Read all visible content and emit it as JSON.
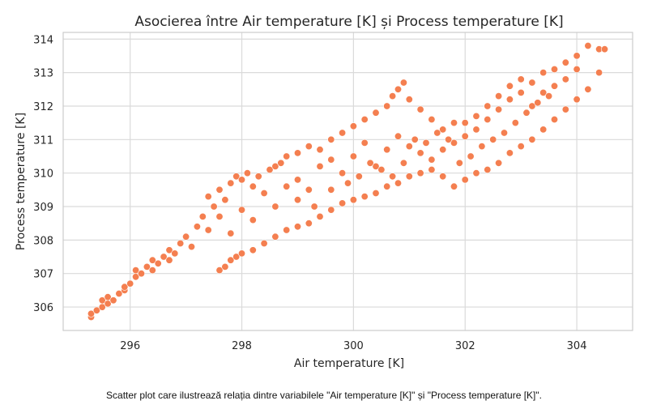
{
  "caption": "Scatter plot care ilustrează relația dintre variabilele \"Air temperature [K]\" și \"Process temperature [K]\".",
  "colors": {
    "point": "#f47f50",
    "point_edge": "#ffffff",
    "grid": "#dadada",
    "spine": "#cccccc",
    "background": "#ffffff"
  },
  "chart_data": {
    "type": "scatter",
    "title": "Asocierea între Air temperature [K] și Process temperature [K]",
    "xlabel": "Air temperature [K]",
    "ylabel": "Process temperature [K]",
    "xlim": [
      294.8,
      305.0
    ],
    "ylim": [
      305.3,
      314.2
    ],
    "xticks": [
      296,
      298,
      300,
      302,
      304
    ],
    "yticks": [
      306,
      307,
      308,
      309,
      310,
      311,
      312,
      313,
      314
    ],
    "grid": true,
    "legend": "none",
    "points": [
      [
        295.3,
        305.7
      ],
      [
        295.3,
        305.8
      ],
      [
        295.4,
        305.9
      ],
      [
        295.5,
        306.0
      ],
      [
        295.5,
        306.2
      ],
      [
        295.6,
        306.1
      ],
      [
        295.6,
        306.3
      ],
      [
        295.7,
        306.2
      ],
      [
        295.8,
        306.4
      ],
      [
        295.9,
        306.5
      ],
      [
        295.9,
        306.6
      ],
      [
        296.0,
        306.7
      ],
      [
        296.1,
        306.9
      ],
      [
        296.1,
        307.1
      ],
      [
        296.2,
        307.0
      ],
      [
        296.3,
        307.2
      ],
      [
        296.4,
        307.1
      ],
      [
        296.4,
        307.4
      ],
      [
        296.5,
        307.3
      ],
      [
        296.6,
        307.5
      ],
      [
        296.7,
        307.4
      ],
      [
        296.7,
        307.7
      ],
      [
        296.8,
        307.6
      ],
      [
        296.9,
        307.9
      ],
      [
        297.0,
        308.1
      ],
      [
        297.1,
        307.8
      ],
      [
        297.2,
        308.4
      ],
      [
        297.3,
        308.7
      ],
      [
        297.4,
        308.3
      ],
      [
        297.5,
        309.0
      ],
      [
        297.6,
        309.5
      ],
      [
        297.7,
        309.2
      ],
      [
        297.8,
        309.7
      ],
      [
        297.9,
        309.9
      ],
      [
        298.0,
        309.8
      ],
      [
        298.1,
        310.0
      ],
      [
        298.2,
        309.6
      ],
      [
        298.3,
        309.9
      ],
      [
        298.5,
        310.1
      ],
      [
        298.6,
        310.2
      ],
      [
        298.7,
        310.3
      ],
      [
        298.8,
        310.5
      ],
      [
        299.0,
        310.6
      ],
      [
        299.2,
        310.8
      ],
      [
        299.4,
        310.7
      ],
      [
        299.6,
        311.0
      ],
      [
        299.8,
        311.2
      ],
      [
        300.0,
        311.4
      ],
      [
        300.2,
        311.6
      ],
      [
        300.4,
        311.8
      ],
      [
        300.6,
        312.0
      ],
      [
        300.7,
        312.3
      ],
      [
        300.8,
        312.5
      ],
      [
        300.9,
        312.7
      ],
      [
        301.0,
        312.2
      ],
      [
        301.2,
        311.9
      ],
      [
        301.4,
        311.6
      ],
      [
        301.6,
        311.3
      ],
      [
        301.8,
        311.5
      ],
      [
        302.0,
        311.5
      ],
      [
        302.2,
        311.7
      ],
      [
        302.4,
        312.0
      ],
      [
        302.6,
        312.3
      ],
      [
        302.8,
        312.6
      ],
      [
        303.0,
        312.8
      ],
      [
        303.2,
        312.7
      ],
      [
        303.4,
        313.0
      ],
      [
        303.6,
        313.1
      ],
      [
        303.8,
        313.3
      ],
      [
        304.0,
        313.5
      ],
      [
        304.2,
        313.8
      ],
      [
        304.4,
        313.7
      ],
      [
        304.5,
        313.7
      ],
      [
        297.6,
        307.1
      ],
      [
        297.7,
        307.2
      ],
      [
        297.8,
        307.4
      ],
      [
        297.9,
        307.5
      ],
      [
        298.0,
        307.6
      ],
      [
        298.2,
        307.7
      ],
      [
        298.4,
        307.9
      ],
      [
        298.6,
        308.1
      ],
      [
        298.8,
        308.3
      ],
      [
        299.0,
        308.4
      ],
      [
        299.2,
        308.5
      ],
      [
        299.4,
        308.7
      ],
      [
        299.6,
        308.9
      ],
      [
        299.8,
        309.1
      ],
      [
        300.0,
        309.2
      ],
      [
        300.2,
        309.3
      ],
      [
        300.4,
        309.4
      ],
      [
        300.6,
        309.6
      ],
      [
        300.8,
        309.7
      ],
      [
        301.0,
        309.9
      ],
      [
        301.2,
        310.0
      ],
      [
        301.4,
        310.1
      ],
      [
        301.6,
        309.9
      ],
      [
        301.8,
        309.6
      ],
      [
        302.0,
        309.8
      ],
      [
        302.2,
        310.0
      ],
      [
        302.4,
        310.1
      ],
      [
        302.6,
        310.3
      ],
      [
        302.8,
        310.6
      ],
      [
        303.0,
        310.8
      ],
      [
        303.2,
        311.0
      ],
      [
        303.4,
        311.3
      ],
      [
        303.6,
        311.6
      ],
      [
        303.8,
        311.9
      ],
      [
        304.0,
        312.2
      ],
      [
        304.2,
        312.5
      ],
      [
        304.4,
        313.0
      ],
      [
        297.4,
        309.3
      ],
      [
        297.6,
        308.7
      ],
      [
        297.8,
        308.2
      ],
      [
        298.0,
        308.9
      ],
      [
        298.2,
        308.6
      ],
      [
        298.4,
        309.4
      ],
      [
        298.6,
        309.0
      ],
      [
        298.8,
        309.6
      ],
      [
        299.0,
        309.8
      ],
      [
        299.2,
        309.5
      ],
      [
        299.4,
        310.2
      ],
      [
        299.6,
        310.4
      ],
      [
        299.8,
        310.0
      ],
      [
        300.0,
        310.5
      ],
      [
        300.2,
        310.9
      ],
      [
        300.4,
        310.2
      ],
      [
        300.6,
        310.7
      ],
      [
        300.8,
        311.1
      ],
      [
        301.0,
        310.8
      ],
      [
        301.2,
        310.6
      ],
      [
        301.4,
        310.4
      ],
      [
        301.6,
        310.7
      ],
      [
        301.8,
        310.9
      ],
      [
        302.0,
        311.1
      ],
      [
        302.2,
        311.3
      ],
      [
        302.4,
        311.6
      ],
      [
        302.6,
        311.9
      ],
      [
        302.8,
        312.2
      ],
      [
        303.0,
        312.4
      ],
      [
        303.2,
        312.0
      ],
      [
        303.4,
        312.4
      ],
      [
        303.6,
        312.6
      ],
      [
        303.8,
        312.8
      ],
      [
        304.0,
        313.1
      ],
      [
        299.0,
        309.2
      ],
      [
        299.3,
        309.0
      ],
      [
        299.6,
        309.5
      ],
      [
        299.9,
        309.7
      ],
      [
        300.1,
        309.9
      ],
      [
        300.3,
        310.3
      ],
      [
        300.5,
        310.1
      ],
      [
        300.7,
        309.9
      ],
      [
        300.9,
        310.3
      ],
      [
        301.1,
        311.0
      ],
      [
        301.3,
        310.9
      ],
      [
        301.5,
        311.2
      ],
      [
        301.7,
        311.0
      ],
      [
        301.9,
        310.3
      ],
      [
        302.1,
        310.5
      ],
      [
        302.3,
        310.8
      ],
      [
        302.5,
        311.0
      ],
      [
        302.7,
        311.2
      ],
      [
        302.9,
        311.5
      ],
      [
        303.1,
        311.8
      ],
      [
        303.3,
        312.1
      ],
      [
        303.5,
        312.3
      ]
    ]
  }
}
